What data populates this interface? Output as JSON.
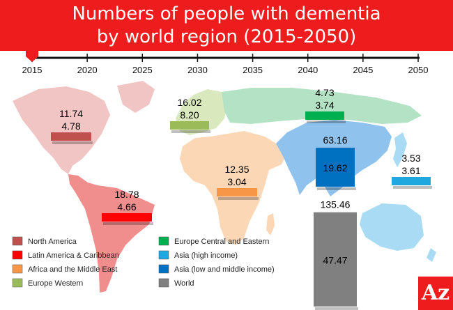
{
  "header": {
    "title_line1": "Numbers of people with dementia",
    "title_line2": "by world region (2015-2050)"
  },
  "logo": {
    "text": "Az"
  },
  "chart_data": {
    "type": "bar",
    "title": "Numbers of people with dementia by world region (2015-2050)",
    "timeline": {
      "ticks": [
        "2015",
        "2020",
        "2025",
        "2030",
        "2035",
        "2040",
        "2045",
        "2050"
      ],
      "current": "2015"
    },
    "series": [
      {
        "name": "North America",
        "color": "#c0504d",
        "map_color": "#f2c5c5",
        "labels": [
          "11.74",
          "4.78"
        ],
        "shown_value": 4.78,
        "projected_2050": 11.74
      },
      {
        "name": "Latin America & Caribbean",
        "color": "#ff0000",
        "map_color": "#f08e8e",
        "labels": [
          "18.78",
          "4.66"
        ],
        "shown_value": 4.66,
        "projected_2050": 18.78
      },
      {
        "name": "Africa and the Middle East",
        "color": "#f79646",
        "map_color": "#fbd7b6",
        "labels": [
          "12.35",
          "3.04"
        ],
        "shown_value": 3.04,
        "projected_2050": 12.35
      },
      {
        "name": "Europe Western",
        "color": "#9bbb59",
        "map_color": "#d9e8bd",
        "labels": [
          "16.02",
          "8.20"
        ],
        "shown_value": 8.2,
        "projected_2050": 16.02
      },
      {
        "name": "Europe Central and Eastern",
        "color": "#00b050",
        "map_color": "#b3e3c4",
        "labels": [
          "4.73",
          "3.74"
        ],
        "shown_value": 3.74,
        "projected_2050": 4.73
      },
      {
        "name": "Asia (high income)",
        "color": "#1fa8e0",
        "map_color": "#a9dcf4",
        "labels": [
          "3.53",
          "3.61"
        ],
        "shown_value": 3.61,
        "projected_2050": 3.53
      },
      {
        "name": "Asia (low and middle income)",
        "color": "#0070c0",
        "map_color": "#8fc2ec",
        "labels": [
          "63.16",
          "19.62"
        ],
        "shown_value": 19.62,
        "projected_2050": 63.16
      },
      {
        "name": "World",
        "color": "#808080",
        "map_color": "#808080",
        "labels": [
          "135.46",
          "47.47"
        ],
        "shown_value": 47.47,
        "projected_2050": 135.46
      }
    ],
    "legend": [
      {
        "name": "North America",
        "color": "#c0504d"
      },
      {
        "name": "Latin America & Caribbean",
        "color": "#ff0000"
      },
      {
        "name": "Africa and the Middle East",
        "color": "#f79646"
      },
      {
        "name": "Europe Western",
        "color": "#9bbb59"
      },
      {
        "name": "Europe Central and Eastern",
        "color": "#00b050"
      },
      {
        "name": "Asia (high income)",
        "color": "#1fa8e0"
      },
      {
        "name": "Asia (low and middle income)",
        "color": "#0070c0"
      },
      {
        "name": "World",
        "color": "#808080"
      }
    ],
    "legend_placement": "bottom-left",
    "grid": false
  }
}
